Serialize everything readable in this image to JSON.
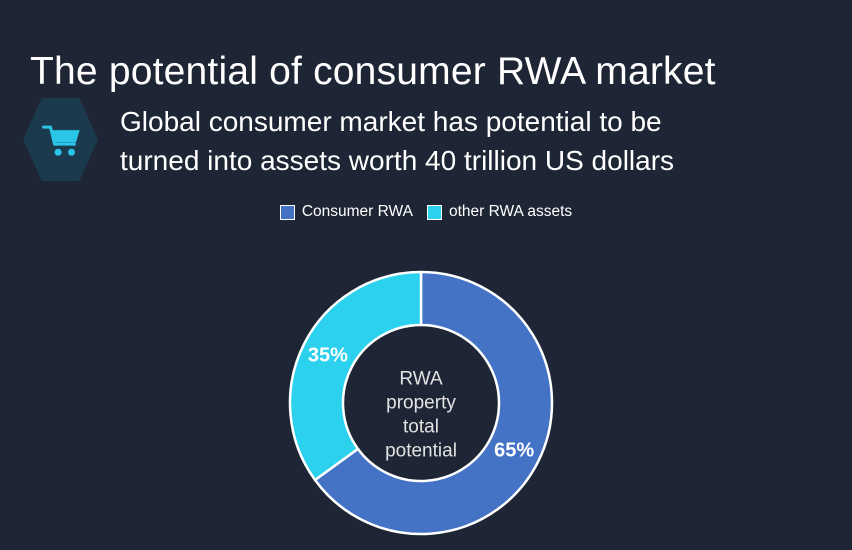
{
  "page": {
    "background": "#1e2534"
  },
  "header": {
    "title": "The potential of consumer RWA market"
  },
  "highlight": {
    "icon": "shopping-cart-icon",
    "hexagon_color": "#1b3a4e",
    "cart_color": "#29c6e8",
    "lines": [
      "Global consumer market has potential to be",
      "turned into assets worth 40 trillion US dollars"
    ]
  },
  "chart_data": {
    "type": "pie",
    "donut": true,
    "start_angle_deg": 0,
    "legend_position": "top",
    "stroke_color": "#ffffff",
    "percent_label_color": "#ffffff",
    "center_text_color": "#e2e2e2",
    "center_label_lines": [
      "RWA",
      "property",
      "total",
      "potential"
    ],
    "slices": [
      {
        "label": "Consumer RWA",
        "value": 65,
        "data_label": "65%",
        "color": "#4472c5"
      },
      {
        "label": "other RWA assets",
        "value": 35,
        "data_label": "35%",
        "color": "#2bd1ed"
      }
    ]
  }
}
